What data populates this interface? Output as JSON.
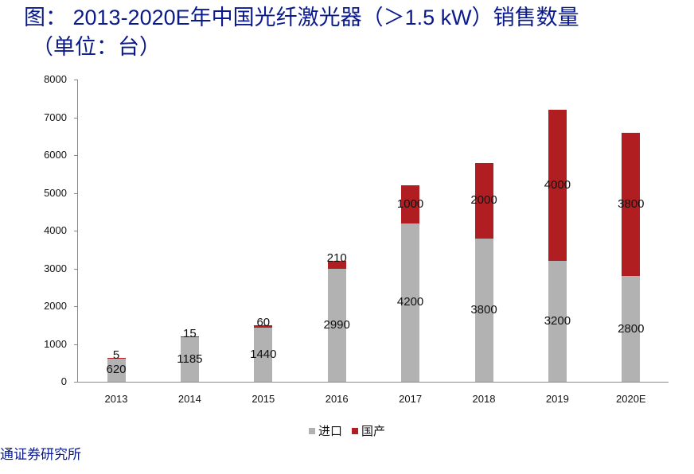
{
  "title": {
    "line1": "图： 2013-2020E年中国光纤激光器（＞1.5 kW）销售数量",
    "line2": "（单位：台）"
  },
  "legend": {
    "import_label": "进口",
    "domestic_label": "国产",
    "import_color": "#b2b2b2",
    "domestic_color": "#b01e22"
  },
  "source": "通证券研究所",
  "yticks": [
    "0",
    "1000",
    "2000",
    "3000",
    "4000",
    "5000",
    "6000",
    "7000",
    "8000"
  ],
  "chart_data": {
    "type": "bar",
    "stacked": true,
    "title": "2013-2020E年中国光纤激光器（＞1.5 kW）销售数量（单位：台）",
    "xlabel": "",
    "ylabel": "",
    "ylim": [
      0,
      8000
    ],
    "categories": [
      "2013",
      "2014",
      "2015",
      "2016",
      "2017",
      "2018",
      "2019",
      "2020E"
    ],
    "series": [
      {
        "name": "进口",
        "color": "#b2b2b2",
        "values": [
          620,
          1185,
          1440,
          2990,
          4200,
          3800,
          3200,
          2800
        ]
      },
      {
        "name": "国产",
        "color": "#b01e22",
        "values": [
          5,
          15,
          60,
          210,
          1000,
          2000,
          4000,
          3800
        ]
      }
    ],
    "grid": false,
    "legend_position": "bottom"
  }
}
